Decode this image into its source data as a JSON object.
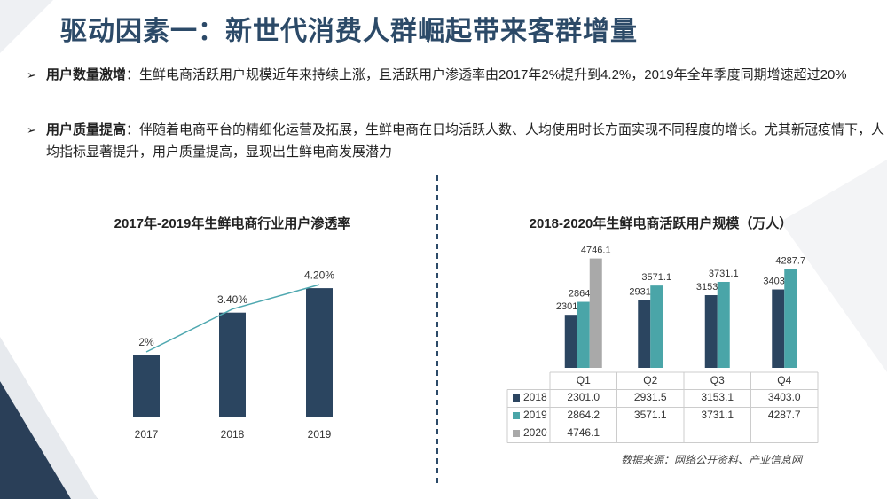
{
  "header": {
    "title": "驱动因素一：新世代消费人群崛起带来客群增量"
  },
  "bullets": [
    {
      "label": "用户数量激增",
      "text": "：生鲜电商活跃用户规模近年来持续上涨，且活跃用户渗透率由2017年2%提升到4.2%，2019年全年季度同期增速超过20%"
    },
    {
      "label": "用户质量提高",
      "text": "：伴随着电商平台的精细化运营及拓展，生鲜电商在日均活跃人数、人均使用时长方面实现不同程度的增长。尤其新冠疫情下，人均指标显著提升，用户质量提高，显现出生鲜电商发展潜力"
    }
  ],
  "chart_data": [
    {
      "type": "bar",
      "title": "2017年-2019年生鲜电商行业用户渗透率",
      "categories": [
        "2017",
        "2018",
        "2019"
      ],
      "values": [
        2,
        3.4,
        4.2
      ],
      "value_labels": [
        "2%",
        "3.40%",
        "4.20%"
      ],
      "color": "#2b4560",
      "line_color": "#4fa8b0",
      "ylim": [
        0,
        5
      ]
    },
    {
      "type": "grouped_bar_table",
      "title": "2018-2020年生鲜电商活跃用户规模（万人）",
      "categories": [
        "Q1",
        "Q2",
        "Q3",
        "Q4"
      ],
      "series": [
        {
          "name": "2018",
          "color": "#2b4560",
          "values": [
            2301.0,
            2931.5,
            3153.1,
            3403.0
          ],
          "value_labels": [
            "2301.0",
            "2931.5",
            "3153.1",
            "3403.0"
          ]
        },
        {
          "name": "2019",
          "color": "#4aa5a8",
          "values": [
            2864.2,
            3571.1,
            3731.1,
            4287.7
          ],
          "value_labels": [
            "2864.2",
            "3571.1",
            "3731.1",
            "4287.7"
          ]
        },
        {
          "name": "2020",
          "color": "#a9a9a9",
          "values": [
            4746.1,
            null,
            null,
            null
          ],
          "value_labels": [
            "4746.1",
            null,
            null,
            null
          ]
        }
      ],
      "ylim": [
        0,
        5000
      ]
    }
  ],
  "source": "数据来源：网络公开资料、产业信息网"
}
